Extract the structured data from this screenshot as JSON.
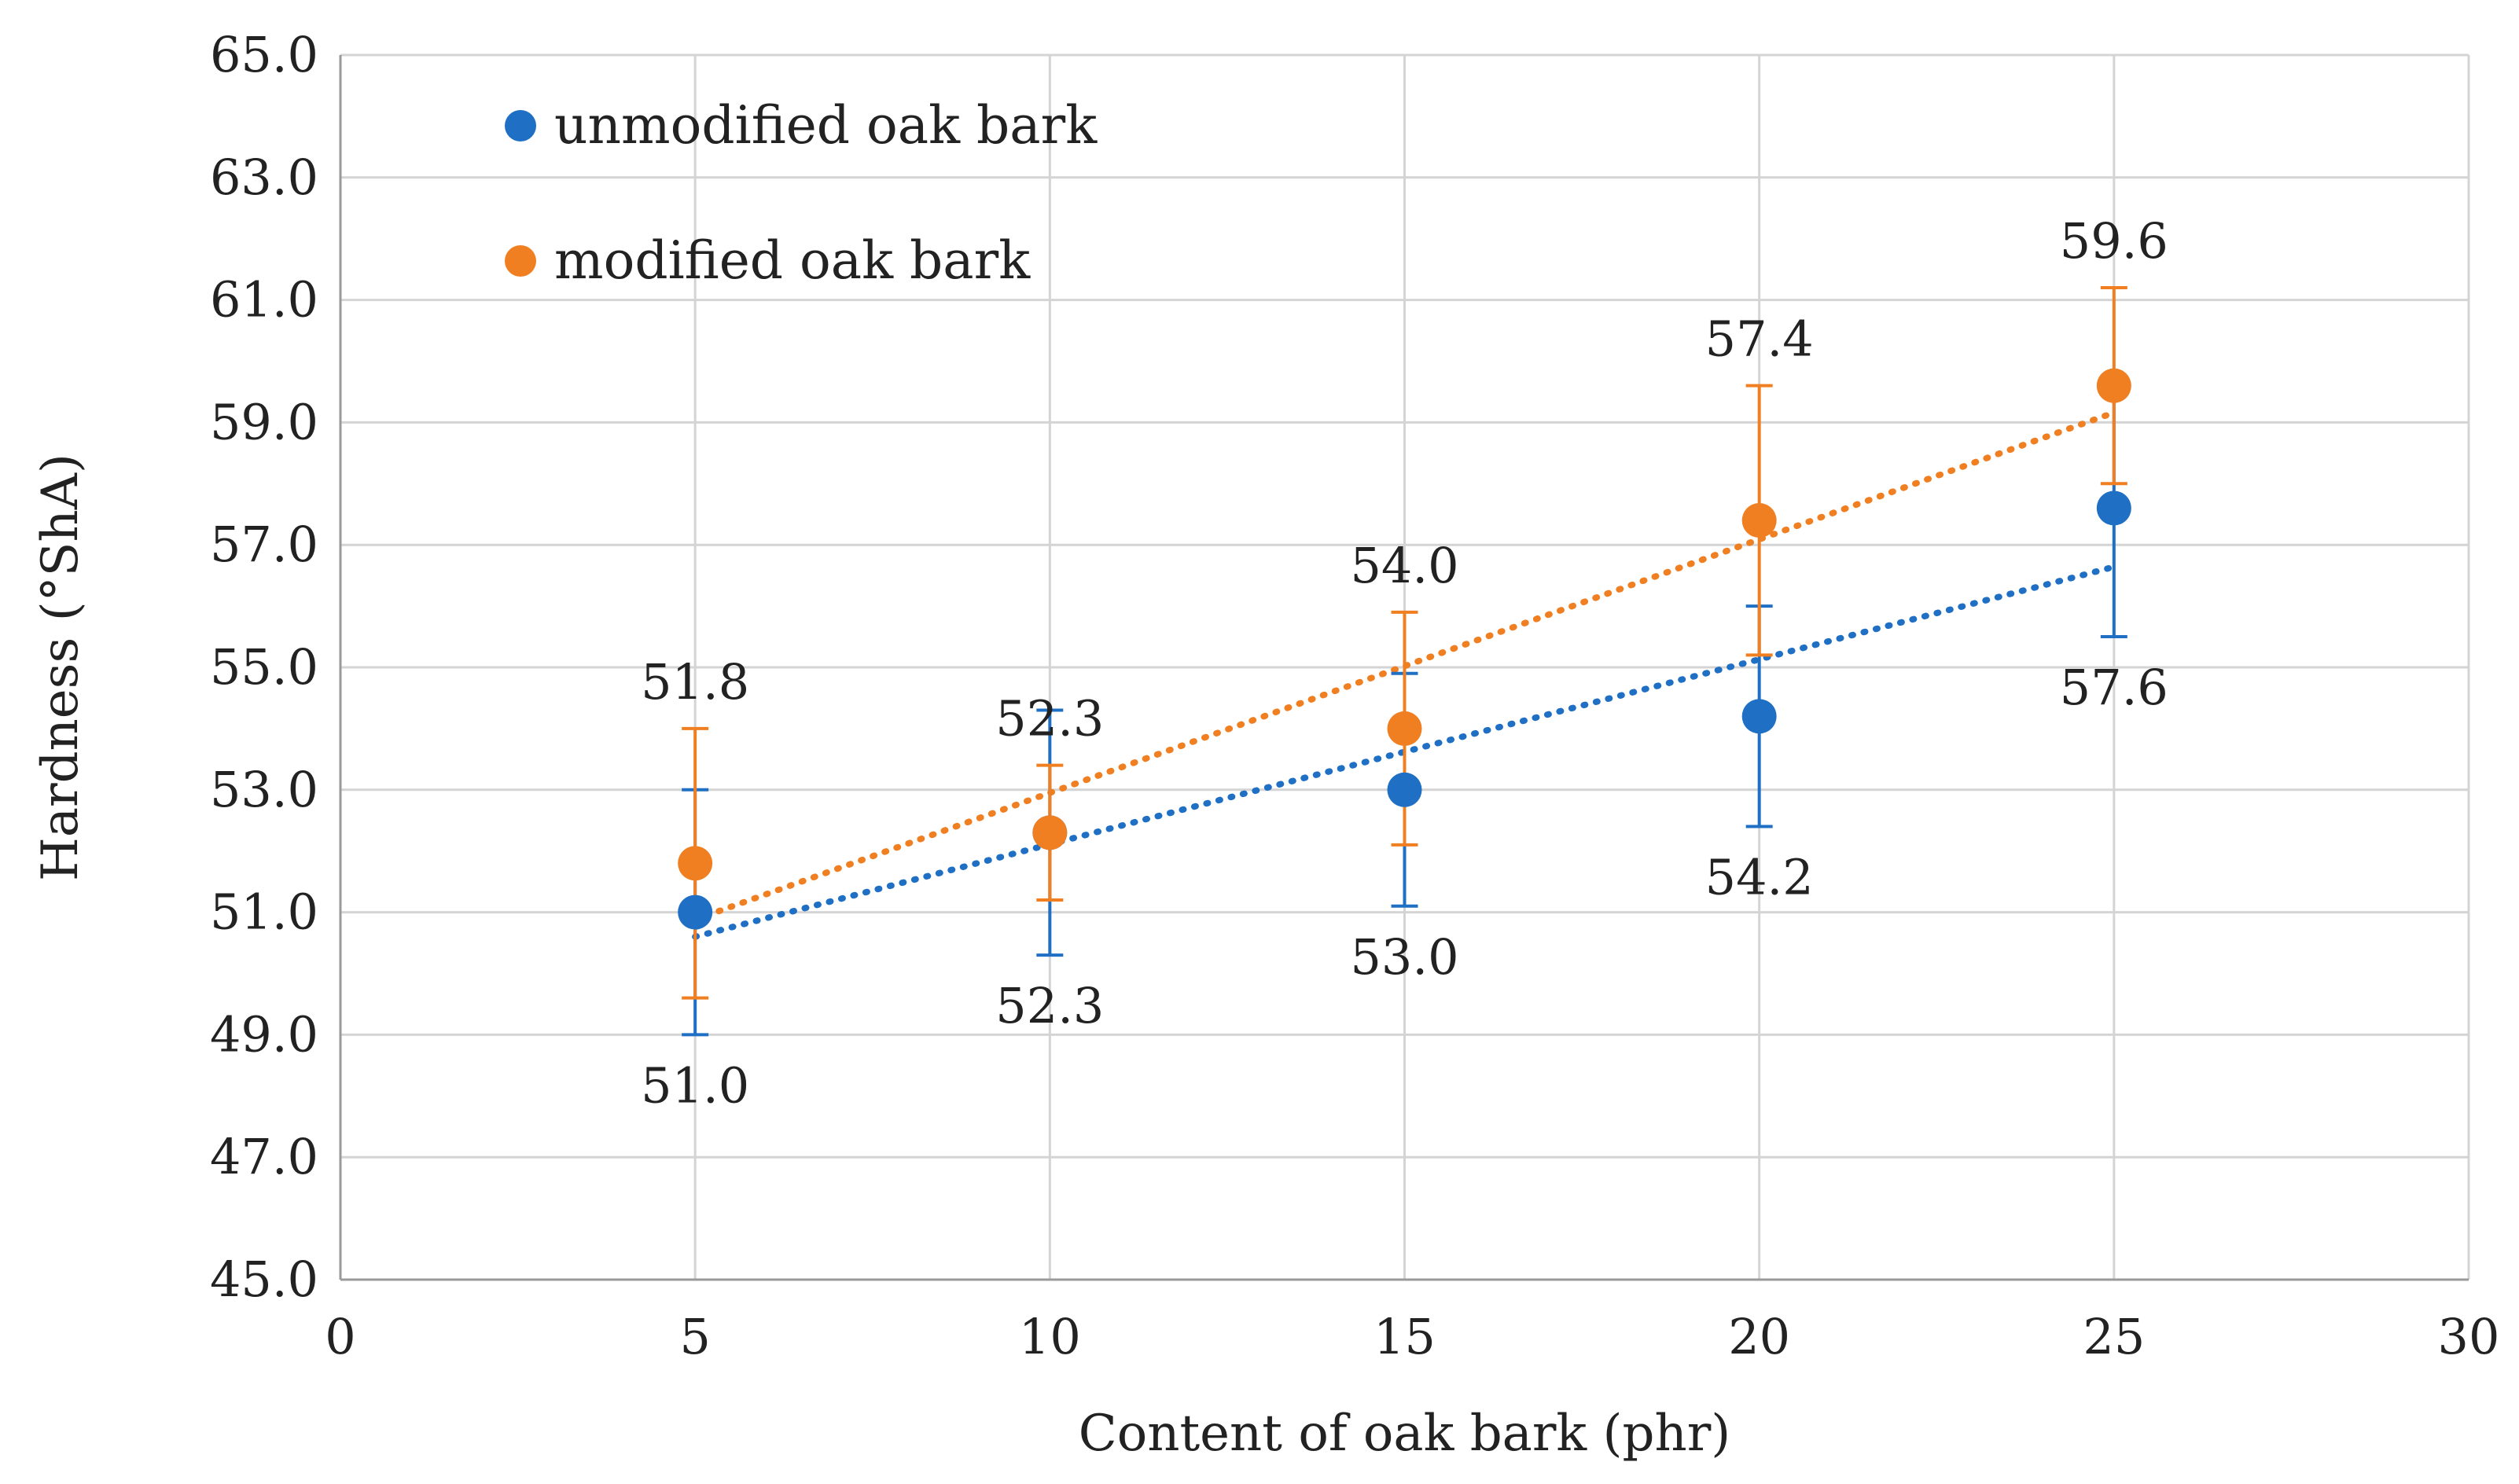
{
  "chart_data": {
    "type": "scatter",
    "title": "",
    "xlabel": "Content of oak bark (phr)",
    "ylabel": "Hardness (°ShA)",
    "xlim": [
      0,
      30
    ],
    "ylim": [
      45,
      65
    ],
    "x_ticks": [
      "0",
      "5",
      "10",
      "15",
      "20",
      "25",
      "30"
    ],
    "y_ticks": [
      "45.0",
      "47.0",
      "49.0",
      "51.0",
      "53.0",
      "55.0",
      "57.0",
      "59.0",
      "61.0",
      "63.0",
      "65.0"
    ],
    "grid": true,
    "legend_position": "top-left",
    "series": [
      {
        "name": "unmodified oak bark",
        "color": "#1f6fc4",
        "x": [
          5,
          10,
          15,
          20,
          25
        ],
        "y": [
          51.0,
          52.3,
          53.0,
          54.2,
          57.6
        ],
        "error": [
          2.0,
          2.0,
          1.9,
          1.8,
          2.1
        ],
        "labels": [
          "51.0",
          "52.3",
          "53.0",
          "54.2",
          "57.6"
        ],
        "label_position": "below",
        "trendline": "linear"
      },
      {
        "name": "modified oak bark",
        "color": "#f07f22",
        "x": [
          5,
          10,
          15,
          20,
          25
        ],
        "y": [
          51.8,
          52.3,
          54.0,
          57.4,
          59.6
        ],
        "error": [
          2.2,
          1.1,
          1.9,
          2.2,
          1.6
        ],
        "labels": [
          "51.8",
          "52.3",
          "54.0",
          "57.4",
          "59.6"
        ],
        "label_position": "above",
        "trendline": "linear"
      }
    ]
  }
}
